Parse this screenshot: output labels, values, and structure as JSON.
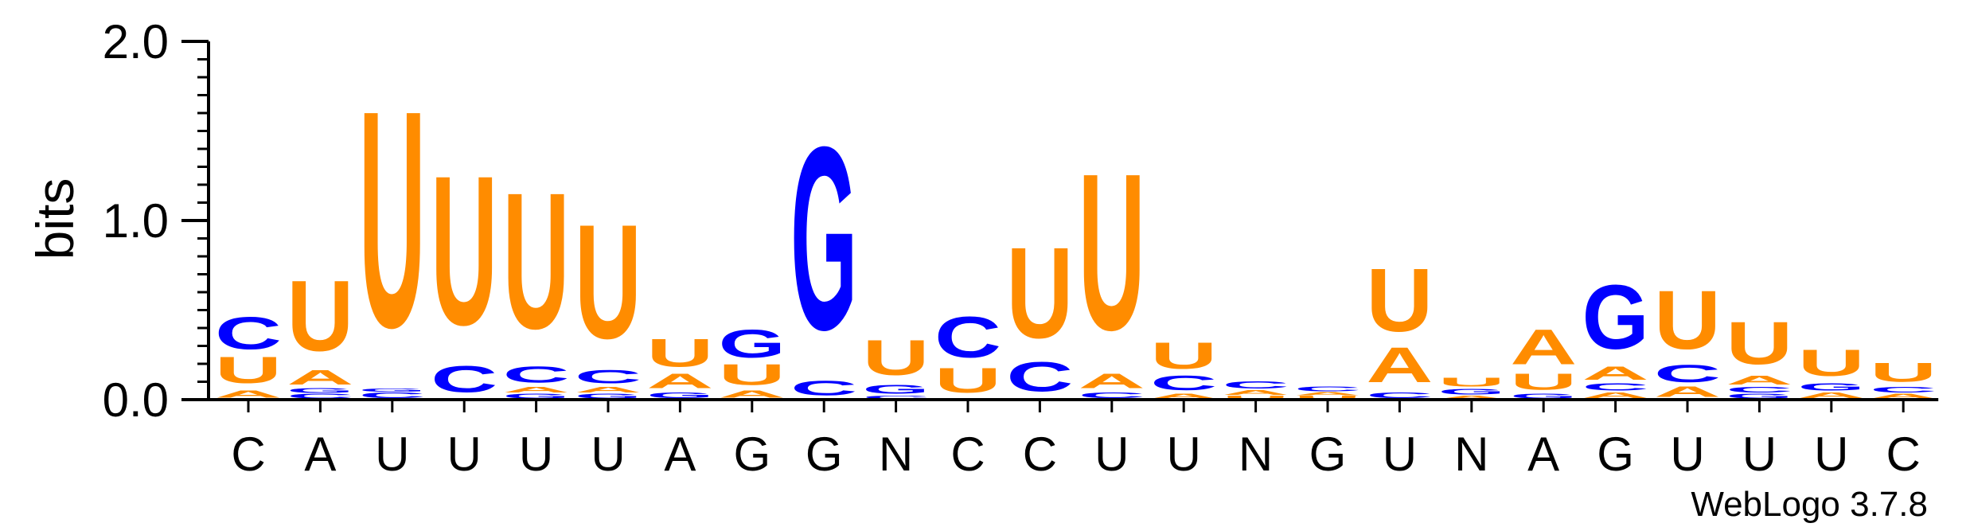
{
  "chart_data": {
    "type": "sequence-logo",
    "ylabel": "bits",
    "ylim": [
      0,
      2.0
    ],
    "yticks": [
      "0.0",
      "1.0",
      "2.0"
    ],
    "positions": [
      "C",
      "A",
      "U",
      "U",
      "U",
      "U",
      "A",
      "G",
      "G",
      "N",
      "C",
      "C",
      "U",
      "U",
      "N",
      "G",
      "U",
      "N",
      "A",
      "G",
      "U",
      "U",
      "U",
      "C"
    ],
    "stacks": [
      [
        [
          "A",
          0.05
        ],
        [
          "U",
          0.18
        ],
        [
          "C",
          0.22
        ]
      ],
      [
        [
          "C",
          0.03
        ],
        [
          "G",
          0.03
        ],
        [
          "A",
          0.1
        ],
        [
          "U",
          0.48
        ]
      ],
      [
        [
          "C",
          0.04
        ],
        [
          "G",
          0.02
        ],
        [
          "U",
          1.48
        ]
      ],
      [
        [
          "C",
          0.18
        ],
        [
          "U",
          1.02
        ]
      ],
      [
        [
          "G",
          0.03
        ],
        [
          "A",
          0.04
        ],
        [
          "C",
          0.11
        ],
        [
          "U",
          0.93
        ]
      ],
      [
        [
          "G",
          0.03
        ],
        [
          "A",
          0.04
        ],
        [
          "C",
          0.09
        ],
        [
          "U",
          0.78
        ]
      ],
      [
        [
          "G",
          0.04
        ],
        [
          "A",
          0.1
        ],
        [
          "U",
          0.19
        ]
      ],
      [
        [
          "A",
          0.05
        ],
        [
          "U",
          0.14
        ],
        [
          "G",
          0.19
        ]
      ],
      [
        [
          "C",
          0.1
        ],
        [
          "G",
          1.25
        ]
      ],
      [
        [
          "C",
          0.02
        ],
        [
          "G",
          0.06
        ],
        [
          "U",
          0.24
        ]
      ],
      [
        [
          "U",
          0.17
        ],
        [
          "C",
          0.28
        ]
      ],
      [
        [
          "C",
          0.2
        ],
        [
          "U",
          0.62
        ]
      ],
      [
        [
          "C",
          0.04
        ],
        [
          "A",
          0.1
        ],
        [
          "U",
          1.07
        ]
      ],
      [
        [
          "A",
          0.03
        ],
        [
          "C",
          0.1
        ],
        [
          "U",
          0.18
        ]
      ],
      [
        [
          "U",
          0.02
        ],
        [
          "A",
          0.03
        ],
        [
          "C",
          0.05
        ]
      ],
      [
        [
          "U",
          0.02
        ],
        [
          "A",
          0.02
        ],
        [
          "C",
          0.03
        ]
      ],
      [
        [
          "C",
          0.04
        ],
        [
          "A",
          0.24
        ],
        [
          "U",
          0.43
        ]
      ],
      [
        [
          "A",
          0.02
        ],
        [
          "G",
          0.04
        ],
        [
          "U",
          0.06
        ]
      ],
      [
        [
          "G",
          0.03
        ],
        [
          "U",
          0.11
        ],
        [
          "A",
          0.24
        ]
      ],
      [
        [
          "A",
          0.04
        ],
        [
          "C",
          0.05
        ],
        [
          "A",
          0.09
        ],
        [
          "G",
          0.44
        ]
      ],
      [
        [
          "A",
          0.07
        ],
        [
          "C",
          0.12
        ],
        [
          "U",
          0.4
        ]
      ],
      [
        [
          "G",
          0.03
        ],
        [
          "C",
          0.04
        ],
        [
          "A",
          0.06
        ],
        [
          "U",
          0.29
        ]
      ],
      [
        [
          "A",
          0.04
        ],
        [
          "G",
          0.05
        ],
        [
          "U",
          0.18
        ]
      ],
      [
        [
          "A",
          0.03
        ],
        [
          "C",
          0.04
        ],
        [
          "U",
          0.13
        ]
      ]
    ],
    "colors": {
      "A": "#ff8c00",
      "U": "#ff8c00",
      "C": "#0000ff",
      "G": "#0000ff",
      "N": "#000000"
    },
    "credit": "WebLogo 3.7.8"
  }
}
